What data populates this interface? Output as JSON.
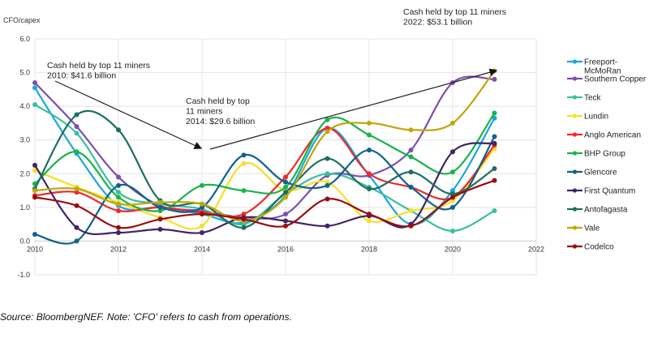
{
  "chart_data": {
    "type": "line",
    "title": "",
    "ylabel": "CFO/capex",
    "xlabel": "",
    "xlim": [
      2010,
      2022
    ],
    "ylim": [
      -1.0,
      6.0
    ],
    "xticks": [
      "2010",
      "2012",
      "2014",
      "2016",
      "2018",
      "2020",
      "2022"
    ],
    "yticks": [
      "6.0",
      "5.0",
      "4.0",
      "3.0",
      "2.0",
      "1.0",
      "0.0",
      "-1.0"
    ],
    "grid": true,
    "legend_position": "right",
    "x": [
      2010,
      2011,
      2012,
      2013,
      2014,
      2015,
      2016,
      2017,
      2018,
      2019,
      2020,
      2021
    ],
    "series": [
      {
        "name": "Freeport-McMoRan",
        "color": "#1aa7e0",
        "values": [
          4.55,
          2.6,
          1.05,
          1.0,
          0.8,
          0.55,
          1.35,
          3.35,
          1.95,
          0.5,
          1.5,
          3.65
        ]
      },
      {
        "name": "Southern Copper",
        "color": "#7a4fb0",
        "values": [
          4.7,
          3.4,
          1.9,
          1.05,
          0.9,
          0.7,
          0.8,
          1.95,
          1.95,
          2.7,
          4.7,
          4.8
        ]
      },
      {
        "name": "Teck",
        "color": "#3cbfa0",
        "values": [
          4.05,
          3.2,
          1.45,
          1.1,
          0.95,
          0.5,
          1.4,
          2.0,
          1.6,
          0.9,
          0.3,
          0.9
        ]
      },
      {
        "name": "Lundin",
        "color": "#f5e02a",
        "values": [
          2.1,
          1.6,
          1.15,
          0.7,
          0.45,
          2.3,
          1.5,
          1.75,
          0.6,
          0.9,
          1.2,
          2.75
        ]
      },
      {
        "name": "Anglo American",
        "color": "#f0282a",
        "values": [
          1.35,
          1.45,
          0.9,
          1.0,
          0.85,
          0.8,
          1.9,
          3.35,
          2.0,
          1.6,
          1.3,
          2.85
        ]
      },
      {
        "name": "BHP Group",
        "color": "#19b34a",
        "values": [
          1.7,
          2.65,
          1.3,
          0.9,
          1.65,
          1.5,
          1.6,
          3.6,
          3.15,
          2.5,
          2.05,
          3.8
        ]
      },
      {
        "name": "Glencore",
        "color": "#10628a",
        "values": [
          0.2,
          0.0,
          1.65,
          1.0,
          1.0,
          2.55,
          1.75,
          1.65,
          2.7,
          1.6,
          1.0,
          3.1
        ]
      },
      {
        "name": "First Quantum",
        "color": "#3f2466",
        "values": [
          2.25,
          0.4,
          0.25,
          0.35,
          0.25,
          0.7,
          0.6,
          0.45,
          0.75,
          0.5,
          2.65,
          2.9
        ]
      },
      {
        "name": "Antofagasta",
        "color": "#1d6f61",
        "values": [
          1.55,
          3.75,
          3.3,
          1.2,
          1.1,
          0.4,
          1.45,
          2.45,
          1.55,
          2.05,
          1.4,
          2.15
        ]
      },
      {
        "name": "Vale",
        "color": "#c2a60c",
        "values": [
          1.5,
          1.55,
          1.1,
          1.15,
          1.1,
          0.6,
          1.3,
          3.25,
          3.5,
          3.3,
          3.5,
          5.05
        ]
      },
      {
        "name": "Codelco",
        "color": "#9a0d0d",
        "values": [
          1.3,
          1.05,
          0.4,
          0.65,
          0.8,
          0.65,
          0.45,
          1.25,
          0.8,
          0.45,
          1.3,
          1.8
        ]
      }
    ],
    "legend": [
      "Freeport-\nMcMoRan",
      "Southern Copper",
      "Teck",
      "Lundin",
      "Anglo American",
      "BHP Group",
      "Glencore",
      "First Quantum",
      "Antofagasta",
      "Vale",
      "Codelco"
    ],
    "annotations": [
      {
        "lines": [
          "Cash held by top 11 miners",
          "2010: $41.6 billion"
        ]
      },
      {
        "lines": [
          "Cash held by top",
          "11 miners",
          "2014: $29.6 billion"
        ]
      },
      {
        "lines": [
          "Cash held by top 11 miners",
          "2022: $53.1 billion"
        ]
      }
    ]
  },
  "source_note": "Source: BloombergNEF. Note: 'CFO' refers to cash from operations."
}
